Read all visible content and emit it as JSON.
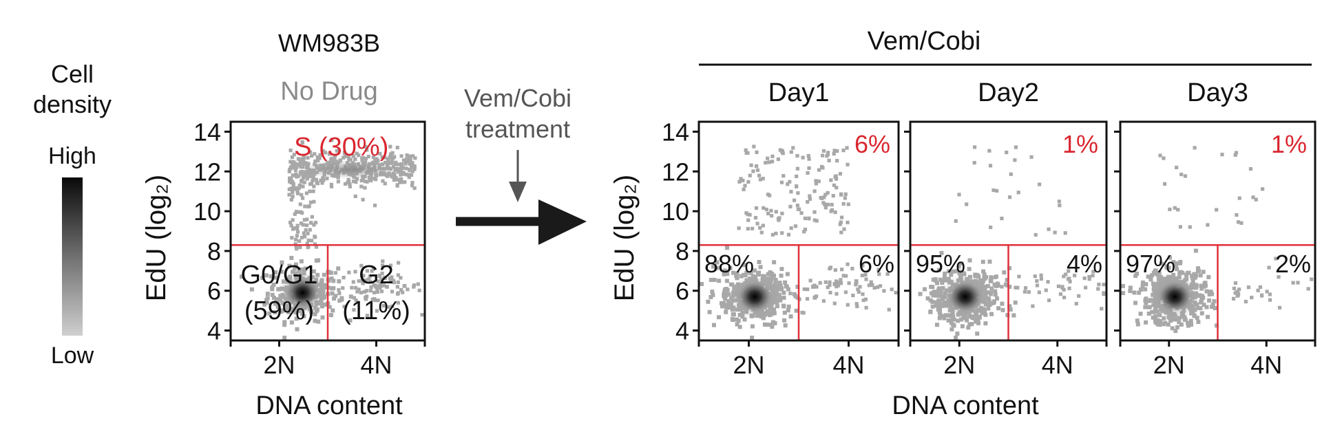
{
  "legend": {
    "title_line1": "Cell",
    "title_line2": "density",
    "high_label": "High",
    "low_label": "Low"
  },
  "left_panel": {
    "cell_line": "WM983B",
    "condition": "No Drug"
  },
  "treatment": {
    "label_line1": "Vem/Cobi",
    "label_line2": "treatment"
  },
  "right_group": {
    "title": "Vem/Cobi"
  },
  "colors": {
    "gate_line": "#e0303a",
    "s_label": "#d9262f",
    "points": "#a8a8a8",
    "dense_core": "#111111",
    "subtitle_gray": "#8a8a8a",
    "arrow_small": "#555555",
    "arrow_big": "#1a1a1a"
  },
  "chart_data": [
    {
      "type": "scatter",
      "title": "No Drug",
      "xlabel": "DNA content",
      "ylabel": "EdU (log₂)",
      "xticks": [
        "2N",
        "4N"
      ],
      "yticks": [
        4,
        6,
        8,
        10,
        12,
        14
      ],
      "ylim": [
        3.5,
        14.5
      ],
      "xlim": [
        0,
        100
      ],
      "gates": {
        "edu_threshold": 8.3,
        "dna_threshold": 50
      },
      "quadrants": [
        {
          "name": "S",
          "label": "S (30%)",
          "value_pct": 30
        },
        {
          "name": "G0/G1",
          "label_line1": "G0/G1",
          "label_line2": "(59%)",
          "value_pct": 59
        },
        {
          "name": "G2",
          "label_line1": "G2",
          "label_line2": "(11%)",
          "value_pct": 11
        }
      ],
      "populations": [
        {
          "name": "G0/G1",
          "x_center": 37,
          "y_center": 5.9,
          "share": 0.59
        },
        {
          "name": "S",
          "x_range": [
            30,
            95
          ],
          "y_center": 12.2,
          "share": 0.3
        },
        {
          "name": "G2",
          "x_center": 78,
          "y_center": 6.3,
          "share": 0.11
        }
      ]
    },
    {
      "type": "scatter",
      "title": "Day1",
      "xlabel": "DNA content",
      "ylabel": "EdU (log₂)",
      "xticks": [
        "2N",
        "4N"
      ],
      "yticks": [
        4,
        6,
        8,
        10,
        12,
        14
      ],
      "ylim": [
        3.5,
        14.5
      ],
      "xlim": [
        0,
        100
      ],
      "gates": {
        "edu_threshold": 8.3,
        "dna_threshold": 50
      },
      "quadrants": [
        {
          "name": "S",
          "label": "6%",
          "value_pct": 6
        },
        {
          "name": "G0/G1",
          "label": "88%",
          "value_pct": 88
        },
        {
          "name": "G2",
          "label": "6%",
          "value_pct": 6
        }
      ]
    },
    {
      "type": "scatter",
      "title": "Day2",
      "xlabel": "DNA content",
      "xticks": [
        "2N",
        "4N"
      ],
      "yticks": [
        4,
        6,
        8,
        10,
        12,
        14
      ],
      "ylim": [
        3.5,
        14.5
      ],
      "xlim": [
        0,
        100
      ],
      "gates": {
        "edu_threshold": 8.3,
        "dna_threshold": 50
      },
      "quadrants": [
        {
          "name": "S",
          "label": "1%",
          "value_pct": 1
        },
        {
          "name": "G0/G1",
          "label": "95%",
          "value_pct": 95
        },
        {
          "name": "G2",
          "label": "4%",
          "value_pct": 4
        }
      ]
    },
    {
      "type": "scatter",
      "title": "Day3",
      "xlabel": "DNA content",
      "xticks": [
        "2N",
        "4N"
      ],
      "yticks": [
        4,
        6,
        8,
        10,
        12,
        14
      ],
      "ylim": [
        3.5,
        14.5
      ],
      "xlim": [
        0,
        100
      ],
      "gates": {
        "edu_threshold": 8.3,
        "dna_threshold": 50
      },
      "quadrants": [
        {
          "name": "S",
          "label": "1%",
          "value_pct": 1
        },
        {
          "name": "G0/G1",
          "label": "97%",
          "value_pct": 97
        },
        {
          "name": "G2",
          "label": "2%",
          "value_pct": 2
        }
      ]
    }
  ]
}
